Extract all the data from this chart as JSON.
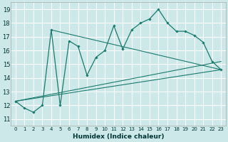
{
  "xlabel": "Humidex (Indice chaleur)",
  "background_color": "#cce8e8",
  "grid_color": "#c8dede",
  "line_color": "#1a7a6e",
  "xlim": [
    -0.5,
    23.5
  ],
  "ylim": [
    10.5,
    19.5
  ],
  "yticks": [
    11,
    12,
    13,
    14,
    15,
    16,
    17,
    18,
    19
  ],
  "xticks": [
    0,
    1,
    2,
    3,
    4,
    5,
    6,
    7,
    8,
    9,
    10,
    11,
    12,
    13,
    14,
    15,
    16,
    17,
    18,
    19,
    20,
    21,
    22,
    23
  ],
  "xtick_labels": [
    "0",
    "1",
    "2",
    "3",
    "4",
    "5",
    "6",
    "7",
    "8",
    "9",
    "10",
    "11",
    "12",
    "13",
    "14",
    "15",
    "16",
    "17",
    "18",
    "19",
    "20",
    "21",
    "22",
    "23"
  ],
  "main_x": [
    0,
    1,
    2,
    3,
    4,
    5,
    6,
    7,
    8,
    9,
    10,
    11,
    12,
    13,
    14,
    15,
    16,
    17,
    18,
    19,
    20,
    21,
    22,
    23
  ],
  "main_y": [
    12.3,
    11.8,
    11.5,
    12.0,
    17.5,
    12.0,
    16.7,
    16.3,
    14.2,
    15.5,
    16.0,
    17.8,
    16.1,
    17.5,
    18.0,
    18.3,
    19.0,
    18.0,
    17.4,
    17.4,
    17.1,
    16.6,
    15.2,
    14.6
  ],
  "line1_x": [
    0,
    23
  ],
  "line1_y": [
    12.3,
    15.2
  ],
  "line2_x": [
    0,
    23
  ],
  "line2_y": [
    12.3,
    14.6
  ],
  "line3_x": [
    4,
    23
  ],
  "line3_y": [
    17.5,
    14.6
  ]
}
